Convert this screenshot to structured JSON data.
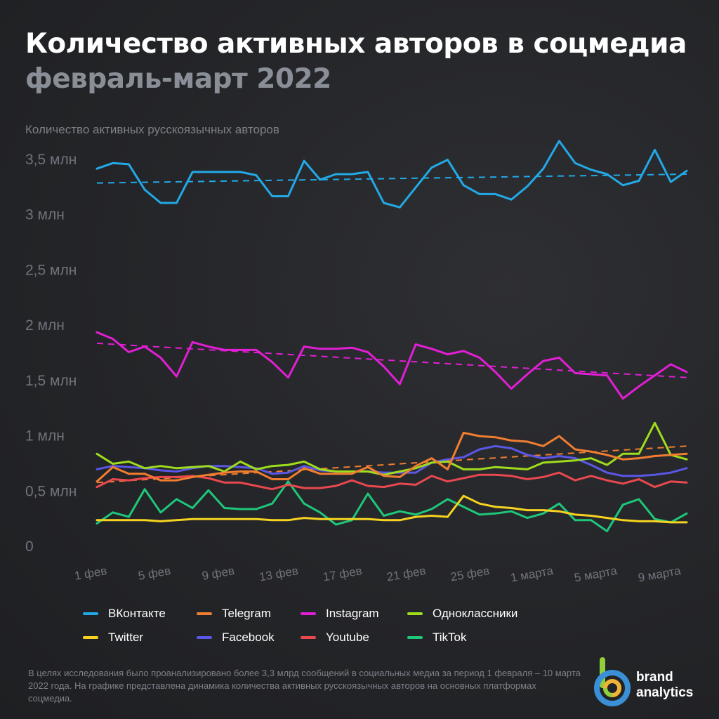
{
  "header": {
    "title": "Количество активных авторов в соцмедиа",
    "subtitle": "февраль-март 2022"
  },
  "footnote": "В целях исследования было проанализировано более 3,3 млрд сообщений в социальных медиа за период 1 февраля – 10 марта 2022 года. На графике представлена динамика количества активных русскоязычных авторов на основных платформах соцмедиа.",
  "brand": {
    "line1": "brand",
    "line2": "analytics",
    "logo_icon": "brand-analytics-logo-icon"
  },
  "chart_data": {
    "type": "line",
    "ylabel": "Количество активных русскоязычных авторов",
    "ylim": [
      0,
      3.5
    ],
    "y_ticks": [
      {
        "value": 0,
        "label": "0"
      },
      {
        "value": 0.5,
        "label": "0,5 млн"
      },
      {
        "value": 1,
        "label": "1 млн"
      },
      {
        "value": 1.5,
        "label": "1,5 млн"
      },
      {
        "value": 2,
        "label": "2 млн"
      },
      {
        "value": 2.5,
        "label": "2,5 млн"
      },
      {
        "value": 3,
        "label": "3 млн"
      },
      {
        "value": 3.5,
        "label": "3,5 млн"
      }
    ],
    "x_tick_labels": [
      "1 фев",
      "5 фев",
      "9 фев",
      "13 фев",
      "17 фев",
      "21 фев",
      "25 фев",
      "1 марта",
      "5 марта",
      "9 марта"
    ],
    "x_tick_every": 4,
    "grid": false,
    "legend_position": "bottom",
    "series": [
      {
        "name": "ВКонтакте",
        "color": "#22a9e6",
        "trend": [
          3.28,
          3.36
        ],
        "values": [
          3.41,
          3.46,
          3.45,
          3.22,
          3.1,
          3.1,
          3.38,
          3.38,
          3.38,
          3.38,
          3.35,
          3.16,
          3.16,
          3.48,
          3.31,
          3.36,
          3.36,
          3.38,
          3.1,
          3.06,
          3.24,
          3.42,
          3.49,
          3.26,
          3.18,
          3.18,
          3.13,
          3.25,
          3.41,
          3.66,
          3.46,
          3.4,
          3.36,
          3.26,
          3.3,
          3.58,
          3.29,
          3.39
        ]
      },
      {
        "name": "Telegram",
        "color": "#f07d30",
        "trend": [
          0.57,
          0.9
        ],
        "values": [
          0.58,
          0.71,
          0.65,
          0.65,
          0.59,
          0.59,
          0.62,
          0.64,
          0.66,
          0.67,
          0.67,
          0.6,
          0.6,
          0.7,
          0.65,
          0.65,
          0.65,
          0.71,
          0.63,
          0.62,
          0.72,
          0.79,
          0.69,
          1.02,
          0.99,
          0.98,
          0.95,
          0.94,
          0.9,
          0.99,
          0.87,
          0.85,
          0.82,
          0.78,
          0.79,
          0.81,
          0.82,
          0.83
        ]
      },
      {
        "name": "Instagram",
        "color": "#e11fd4",
        "trend": [
          1.83,
          1.52
        ],
        "values": [
          1.93,
          1.87,
          1.75,
          1.8,
          1.7,
          1.53,
          1.84,
          1.8,
          1.77,
          1.77,
          1.77,
          1.66,
          1.52,
          1.8,
          1.78,
          1.78,
          1.79,
          1.75,
          1.62,
          1.46,
          1.82,
          1.78,
          1.73,
          1.76,
          1.7,
          1.57,
          1.42,
          1.55,
          1.67,
          1.7,
          1.56,
          1.55,
          1.54,
          1.33,
          1.44,
          1.54,
          1.64,
          1.57
        ]
      },
      {
        "name": "Одноклассники",
        "color": "#9edc1e",
        "trend": null,
        "values": [
          0.83,
          0.74,
          0.76,
          0.7,
          0.72,
          0.7,
          0.71,
          0.72,
          0.67,
          0.76,
          0.69,
          0.72,
          0.73,
          0.76,
          0.69,
          0.67,
          0.67,
          0.67,
          0.64,
          0.67,
          0.7,
          0.75,
          0.76,
          0.69,
          0.69,
          0.71,
          0.7,
          0.69,
          0.75,
          0.76,
          0.77,
          0.79,
          0.73,
          0.83,
          0.83,
          1.11,
          0.82,
          0.78
        ]
      },
      {
        "name": "Twitter",
        "color": "#f5d320",
        "trend": null,
        "values": [
          0.23,
          0.23,
          0.23,
          0.23,
          0.22,
          0.23,
          0.24,
          0.24,
          0.24,
          0.24,
          0.24,
          0.23,
          0.23,
          0.25,
          0.24,
          0.24,
          0.24,
          0.24,
          0.23,
          0.23,
          0.26,
          0.27,
          0.26,
          0.45,
          0.38,
          0.35,
          0.34,
          0.32,
          0.32,
          0.31,
          0.28,
          0.27,
          0.25,
          0.23,
          0.22,
          0.22,
          0.21,
          0.21
        ]
      },
      {
        "name": "Facebook",
        "color": "#5b57e6",
        "trend": null,
        "values": [
          0.69,
          0.72,
          0.71,
          0.7,
          0.68,
          0.67,
          0.7,
          0.72,
          0.72,
          0.71,
          0.7,
          0.65,
          0.66,
          0.72,
          0.68,
          0.67,
          0.67,
          0.67,
          0.66,
          0.66,
          0.66,
          0.75,
          0.78,
          0.8,
          0.87,
          0.9,
          0.88,
          0.82,
          0.79,
          0.81,
          0.79,
          0.73,
          0.66,
          0.63,
          0.63,
          0.64,
          0.66,
          0.7
        ]
      },
      {
        "name": "Youtube",
        "color": "#e8484e",
        "trend": null,
        "values": [
          0.53,
          0.6,
          0.59,
          0.61,
          0.62,
          0.62,
          0.63,
          0.61,
          0.57,
          0.57,
          0.54,
          0.51,
          0.55,
          0.52,
          0.52,
          0.54,
          0.59,
          0.54,
          0.53,
          0.56,
          0.55,
          0.63,
          0.58,
          0.61,
          0.64,
          0.64,
          0.63,
          0.6,
          0.62,
          0.66,
          0.59,
          0.63,
          0.59,
          0.56,
          0.6,
          0.53,
          0.58,
          0.57
        ]
      },
      {
        "name": "TikTok",
        "color": "#1ec77a",
        "trend": null,
        "values": [
          0.2,
          0.3,
          0.26,
          0.51,
          0.3,
          0.42,
          0.34,
          0.5,
          0.34,
          0.33,
          0.33,
          0.38,
          0.58,
          0.38,
          0.3,
          0.19,
          0.23,
          0.47,
          0.27,
          0.31,
          0.28,
          0.33,
          0.42,
          0.35,
          0.28,
          0.29,
          0.31,
          0.25,
          0.29,
          0.38,
          0.23,
          0.23,
          0.13,
          0.37,
          0.42,
          0.24,
          0.21,
          0.29
        ]
      }
    ]
  }
}
